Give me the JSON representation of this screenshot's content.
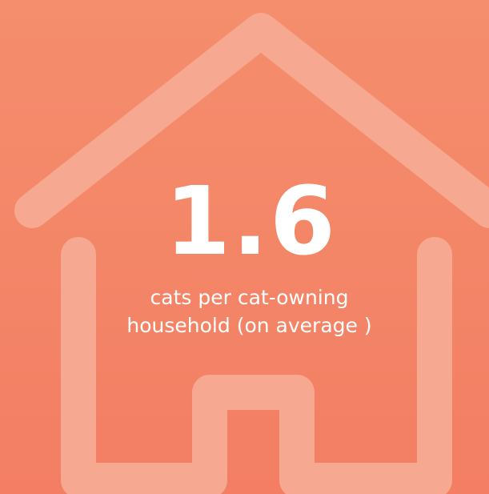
{
  "colors": {
    "background_top": "#f48e6d",
    "background_bottom": "#f37e63",
    "house_outline": "#f7a890",
    "text": "#ffffff"
  },
  "icons": {
    "house": "house-outline-icon"
  },
  "stat": {
    "value": "1.6",
    "caption_line1": "cats per cat-owning",
    "caption_line2": "household (on average )"
  }
}
